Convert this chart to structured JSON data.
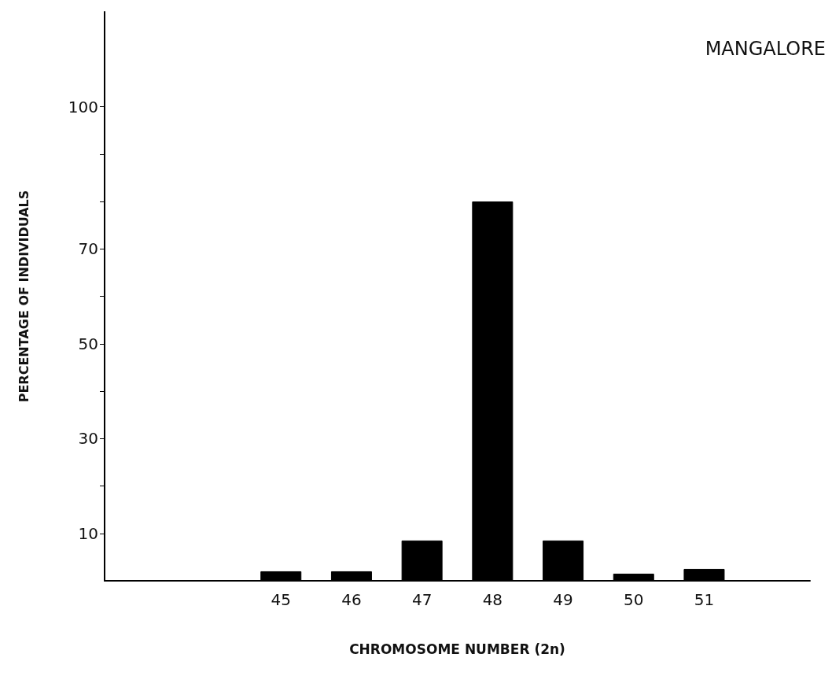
{
  "chart_data": {
    "type": "bar",
    "xlabel": "CHROMOSOME NUMBER (2n)",
    "ylabel": "PERCENTAGE OF INDIVIDUALS",
    "annotations": [
      "MANGALORE"
    ],
    "categories": [
      null,
      null,
      "45",
      "46",
      "47",
      "48",
      "49",
      "50",
      "51",
      null
    ],
    "values": [
      null,
      null,
      2,
      2,
      8.5,
      80,
      8.5,
      1.5,
      2.5,
      null
    ],
    "color": "#000000",
    "ylim": [
      0,
      120
    ],
    "yticks": [
      10,
      {
        "value": 20,
        "label": null
      },
      30,
      {
        "value": 40,
        "label": null
      },
      50,
      {
        "value": 60,
        "label": null
      },
      70,
      {
        "value": 80,
        "label": null
      },
      {
        "value": 90,
        "label": null
      },
      100
    ],
    "grid": false
  }
}
